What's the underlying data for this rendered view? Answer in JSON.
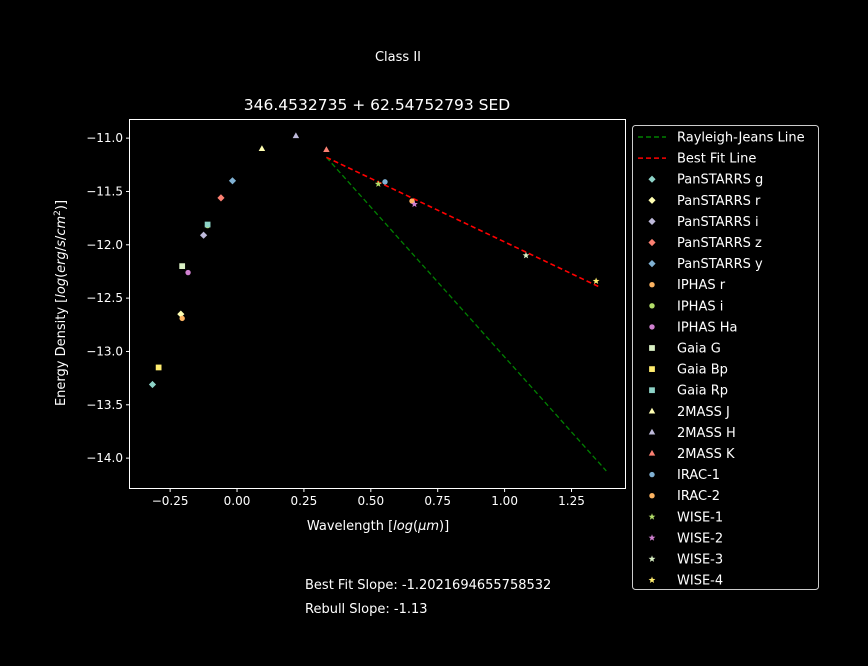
{
  "suptitle": "Class II",
  "footer": {
    "best_fit": "Best Fit Slope: -1.2021694655758532",
    "rebull": "Rebull Slope: -1.13"
  },
  "chart_data": {
    "type": "scatter",
    "title": "346.4532735 + 62.54752793 SED",
    "xlabel": "Wavelength [log(μm)]",
    "ylabel": "Energy Density [log(erg/s/cm²)]",
    "xlim": [
      -0.4,
      1.45
    ],
    "ylim": [
      -14.28,
      -10.83
    ],
    "xticks": [
      -0.25,
      0.0,
      0.25,
      0.5,
      0.75,
      1.0,
      1.25
    ],
    "xtick_labels": [
      "−0.25",
      "0.00",
      "0.25",
      "0.50",
      "0.75",
      "1.00",
      "1.25"
    ],
    "yticks": [
      -11.0,
      -11.5,
      -12.0,
      -12.5,
      -13.0,
      -13.5,
      -14.0
    ],
    "ytick_labels": [
      "−11.0",
      "−11.5",
      "−12.0",
      "−12.5",
      "−13.0",
      "−13.5",
      "−14.0"
    ],
    "grid": false,
    "legend_position": "outside-right",
    "lines": [
      {
        "name": "Rayleigh-Jeans Line",
        "color": "#008000",
        "dash": "dashed",
        "x": [
          0.334,
          1.38
        ],
        "y": [
          -11.18,
          -14.12
        ]
      },
      {
        "name": "Best Fit Line",
        "color": "#ff0000",
        "dash": "dashed",
        "x": [
          0.334,
          1.35
        ],
        "y": [
          -11.18,
          -12.39
        ]
      }
    ],
    "series": [
      {
        "name": "PanSTARRS g",
        "color": "#8dd3c7",
        "marker": "diamond",
        "x": [
          -0.316
        ],
        "y": [
          -13.31
        ]
      },
      {
        "name": "PanSTARRS r",
        "color": "#ffffb3",
        "marker": "diamond",
        "x": [
          -0.21
        ],
        "y": [
          -12.65
        ]
      },
      {
        "name": "PanSTARRS i",
        "color": "#bebada",
        "marker": "diamond",
        "x": [
          -0.125
        ],
        "y": [
          -11.91
        ]
      },
      {
        "name": "PanSTARRS z",
        "color": "#fb8072",
        "marker": "diamond",
        "x": [
          -0.06
        ],
        "y": [
          -11.56
        ]
      },
      {
        "name": "PanSTARRS y",
        "color": "#80b1d3",
        "marker": "diamond",
        "x": [
          -0.017
        ],
        "y": [
          -11.4
        ]
      },
      {
        "name": "IPHAS r",
        "color": "#fdb462",
        "marker": "circle",
        "x": [
          -0.205
        ],
        "y": [
          -12.69
        ]
      },
      {
        "name": "IPHAS i",
        "color": "#b3de69",
        "marker": "circle",
        "x": [
          -0.11
        ],
        "y": [
          -11.82
        ]
      },
      {
        "name": "IPHAS Ha",
        "color": "#d080d0",
        "marker": "circle",
        "x": [
          -0.183
        ],
        "y": [
          -12.26
        ]
      },
      {
        "name": "Gaia G",
        "color": "#d9f0c4",
        "marker": "square",
        "x": [
          -0.205
        ],
        "y": [
          -12.2
        ]
      },
      {
        "name": "Gaia Bp",
        "color": "#ffed6f",
        "marker": "square",
        "x": [
          -0.293
        ],
        "y": [
          -13.15
        ]
      },
      {
        "name": "Gaia Rp",
        "color": "#8dd3c7",
        "marker": "square",
        "x": [
          -0.11
        ],
        "y": [
          -11.81
        ]
      },
      {
        "name": "2MASS J",
        "color": "#ffffb3",
        "marker": "triangle",
        "x": [
          0.093
        ],
        "y": [
          -11.1
        ]
      },
      {
        "name": "2MASS H",
        "color": "#bebada",
        "marker": "triangle",
        "x": [
          0.22
        ],
        "y": [
          -10.98
        ]
      },
      {
        "name": "2MASS K",
        "color": "#fb8072",
        "marker": "triangle",
        "x": [
          0.334
        ],
        "y": [
          -11.11
        ]
      },
      {
        "name": "IRAC-1",
        "color": "#80b1d3",
        "marker": "circle",
        "x": [
          0.553
        ],
        "y": [
          -11.41
        ]
      },
      {
        "name": "IRAC-2",
        "color": "#fdb462",
        "marker": "circle",
        "x": [
          0.654
        ],
        "y": [
          -11.59
        ]
      },
      {
        "name": "WISE-1",
        "color": "#b3de69",
        "marker": "star",
        "x": [
          0.528
        ],
        "y": [
          -11.43
        ]
      },
      {
        "name": "WISE-2",
        "color": "#d080d0",
        "marker": "star",
        "x": [
          0.663
        ],
        "y": [
          -11.62
        ]
      },
      {
        "name": "WISE-3",
        "color": "#d9f0c4",
        "marker": "star",
        "x": [
          1.08
        ],
        "y": [
          -12.1
        ]
      },
      {
        "name": "WISE-4",
        "color": "#ffed6f",
        "marker": "star",
        "x": [
          1.342
        ],
        "y": [
          -12.34
        ]
      }
    ]
  }
}
